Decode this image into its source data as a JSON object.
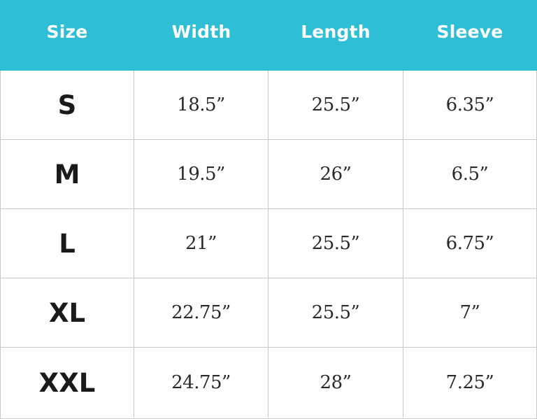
{
  "table": {
    "headers": [
      "Size",
      "Width",
      "Length",
      "Sleeve"
    ],
    "rows": [
      {
        "size": "S",
        "width": "18.5”",
        "length": "25.5”",
        "sleeve": "6.35”"
      },
      {
        "size": "M",
        "width": "19.5”",
        "length": "26”",
        "sleeve": "6.5”"
      },
      {
        "size": "L",
        "width": "21”",
        "length": "25.5”",
        "sleeve": "6.75”"
      },
      {
        "size": "XL",
        "width": "22.75”",
        "length": "25.5”",
        "sleeve": "7”"
      },
      {
        "size": "XXL",
        "width": "24.75”",
        "length": "28”",
        "sleeve": "7.25”"
      }
    ]
  },
  "colors": {
    "header_background": "#2ebfd7",
    "header_text": "#ffffff",
    "grid_line": "#c9c9c9",
    "body_text": "#1a1a1a"
  }
}
